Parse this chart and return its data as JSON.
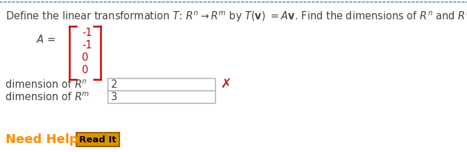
{
  "matrix_values": [
    "-1",
    "-1",
    "0",
    "0"
  ],
  "matrix_color": "#cc0000",
  "bracket_color": "#cc0000",
  "dim_rn_value": "2",
  "dim_rm_value": "3",
  "need_help_color": "#ff8c00",
  "read_it_bg": "#d4930a",
  "read_it_border": "#a06000",
  "read_it_text": "#000000",
  "bg_color": "#ffffff",
  "top_border_color": "#7aa8cc",
  "input_box_border": "#aaaaaa",
  "wrong_x_color": "#cc2222",
  "text_color": "#444444",
  "font_size": 10.5
}
